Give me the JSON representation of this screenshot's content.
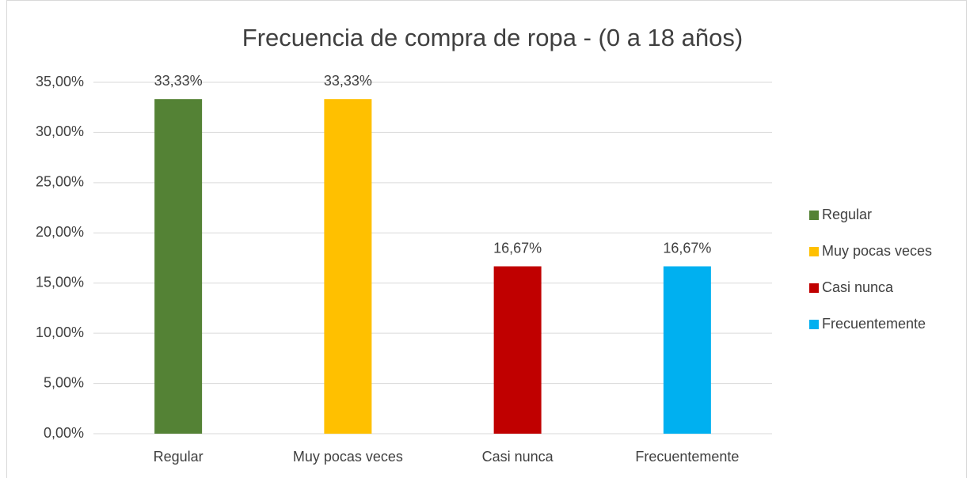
{
  "chart_data": {
    "type": "bar",
    "title": "Frecuencia de compra de ropa - (0 a 18 años)",
    "categories": [
      "Regular",
      "Muy pocas veces",
      "Casi nunca",
      "Frecuentemente"
    ],
    "values": [
      33.33,
      33.33,
      16.67,
      16.67
    ],
    "value_labels": [
      "33,33%",
      "33,33%",
      "16,67%",
      "16,67%"
    ],
    "colors": [
      "#548235",
      "#ffc000",
      "#c00000",
      "#00b0f0"
    ],
    "ylim": [
      0,
      35
    ],
    "yticks": [
      {
        "value": 0,
        "label": "0,00%"
      },
      {
        "value": 5,
        "label": "5,00%"
      },
      {
        "value": 10,
        "label": "10,00%"
      },
      {
        "value": 15,
        "label": "15,00%"
      },
      {
        "value": 20,
        "label": "20,00%"
      },
      {
        "value": 25,
        "label": "25,00%"
      },
      {
        "value": 30,
        "label": "30,00%"
      },
      {
        "value": 35,
        "label": "35,00%"
      }
    ],
    "grid": true,
    "legend": "right"
  }
}
